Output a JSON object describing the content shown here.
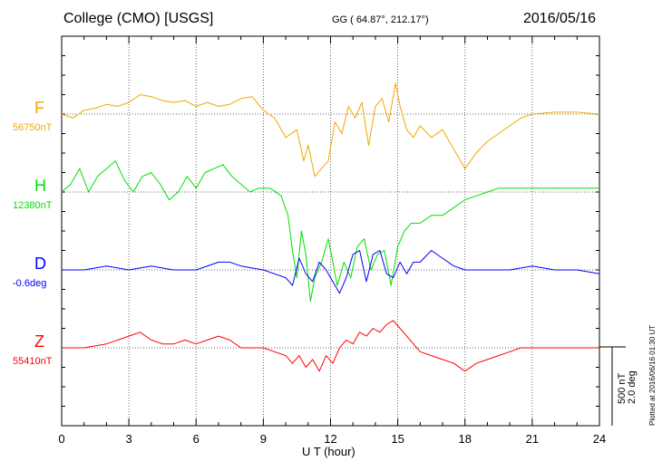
{
  "header": {
    "title": "College (CMO)  [USGS]",
    "coords": "GG ( 64.87°, 212.17°)",
    "date": "2016/05/16"
  },
  "footer": {
    "plotted": "Plotted at 2016/06/16 01:30 UT"
  },
  "scale_bar": {
    "line1": "500 nT",
    "line2": "2.0 deg"
  },
  "chart_data": {
    "type": "line",
    "xlabel": "U T (hour)",
    "xlim": [
      0,
      24
    ],
    "x_ticks": [
      0,
      3,
      6,
      9,
      12,
      15,
      18,
      21,
      24
    ],
    "grid": true,
    "series": [
      {
        "name": "F",
        "baseline_label": "56750nT",
        "color": "#f0a800",
        "baseline_norm": 0.2,
        "points": [
          [
            0,
            0
          ],
          [
            0.5,
            -0.01
          ],
          [
            1,
            0.01
          ],
          [
            1.5,
            0.015
          ],
          [
            2,
            0.025
          ],
          [
            2.5,
            0.02
          ],
          [
            3,
            0.03
          ],
          [
            3.5,
            0.05
          ],
          [
            4,
            0.045
          ],
          [
            4.5,
            0.035
          ],
          [
            5,
            0.03
          ],
          [
            5.5,
            0.035
          ],
          [
            6,
            0.02
          ],
          [
            6.5,
            0.03
          ],
          [
            7,
            0.02
          ],
          [
            7.5,
            0.025
          ],
          [
            8,
            0.04
          ],
          [
            8.5,
            0.045
          ],
          [
            9,
            0.01
          ],
          [
            9.5,
            -0.01
          ],
          [
            10,
            -0.06
          ],
          [
            10.5,
            -0.04
          ],
          [
            10.8,
            -0.12
          ],
          [
            11,
            -0.08
          ],
          [
            11.3,
            -0.16
          ],
          [
            11.6,
            -0.14
          ],
          [
            11.9,
            -0.12
          ],
          [
            12.2,
            -0.02
          ],
          [
            12.5,
            -0.05
          ],
          [
            12.8,
            0.02
          ],
          [
            13.1,
            -0.01
          ],
          [
            13.4,
            0.03
          ],
          [
            13.7,
            -0.08
          ],
          [
            14,
            0.02
          ],
          [
            14.3,
            0.04
          ],
          [
            14.6,
            -0.02
          ],
          [
            14.9,
            0.08
          ],
          [
            15.1,
            0.02
          ],
          [
            15.4,
            -0.04
          ],
          [
            15.7,
            -0.06
          ],
          [
            16,
            -0.03
          ],
          [
            16.5,
            -0.06
          ],
          [
            17,
            -0.04
          ],
          [
            17.5,
            -0.09
          ],
          [
            18,
            -0.14
          ],
          [
            18.5,
            -0.1
          ],
          [
            19,
            -0.07
          ],
          [
            19.5,
            -0.05
          ],
          [
            20,
            -0.03
          ],
          [
            20.5,
            -0.01
          ],
          [
            21,
            0.0
          ],
          [
            22,
            0.005
          ],
          [
            23,
            0.005
          ],
          [
            24,
            0.0
          ]
        ]
      },
      {
        "name": "H",
        "baseline_label": "12380nT",
        "color": "#00e000",
        "baseline_norm": 0.4,
        "points": [
          [
            0,
            0.0
          ],
          [
            0.4,
            0.02
          ],
          [
            0.8,
            0.06
          ],
          [
            1.2,
            0.0
          ],
          [
            1.6,
            0.04
          ],
          [
            2,
            0.06
          ],
          [
            2.4,
            0.08
          ],
          [
            2.8,
            0.03
          ],
          [
            3.2,
            0.0
          ],
          [
            3.6,
            0.04
          ],
          [
            4.0,
            0.05
          ],
          [
            4.4,
            0.02
          ],
          [
            4.8,
            -0.02
          ],
          [
            5.2,
            0.0
          ],
          [
            5.6,
            0.04
          ],
          [
            6.0,
            0.01
          ],
          [
            6.4,
            0.05
          ],
          [
            6.8,
            0.06
          ],
          [
            7.2,
            0.07
          ],
          [
            7.6,
            0.04
          ],
          [
            8.0,
            0.02
          ],
          [
            8.4,
            0.0
          ],
          [
            8.8,
            0.01
          ],
          [
            9.3,
            0.01
          ],
          [
            9.8,
            -0.01
          ],
          [
            10.1,
            -0.06
          ],
          [
            10.3,
            -0.15
          ],
          [
            10.5,
            -0.22
          ],
          [
            10.7,
            -0.1
          ],
          [
            10.9,
            -0.16
          ],
          [
            11.1,
            -0.28
          ],
          [
            11.3,
            -0.22
          ],
          [
            11.6,
            -0.18
          ],
          [
            11.9,
            -0.12
          ],
          [
            12.1,
            -0.18
          ],
          [
            12.3,
            -0.24
          ],
          [
            12.6,
            -0.18
          ],
          [
            12.9,
            -0.22
          ],
          [
            13.2,
            -0.14
          ],
          [
            13.5,
            -0.12
          ],
          [
            13.8,
            -0.2
          ],
          [
            14.1,
            -0.16
          ],
          [
            14.4,
            -0.15
          ],
          [
            14.7,
            -0.24
          ],
          [
            15.0,
            -0.14
          ],
          [
            15.3,
            -0.1
          ],
          [
            15.6,
            -0.08
          ],
          [
            16.0,
            -0.08
          ],
          [
            16.5,
            -0.06
          ],
          [
            17.0,
            -0.06
          ],
          [
            17.5,
            -0.04
          ],
          [
            18.0,
            -0.02
          ],
          [
            18.5,
            -0.01
          ],
          [
            19.0,
            0.0
          ],
          [
            19.5,
            0.01
          ],
          [
            20,
            0.01
          ],
          [
            21,
            0.01
          ],
          [
            22,
            0.01
          ],
          [
            23,
            0.01
          ],
          [
            24,
            0.01
          ]
        ]
      },
      {
        "name": "D",
        "baseline_label": "-0.6deg",
        "color": "#0000ff",
        "baseline_norm": 0.6,
        "points": [
          [
            0,
            0.0
          ],
          [
            1,
            0.0
          ],
          [
            2,
            0.01
          ],
          [
            3,
            0.0
          ],
          [
            4,
            0.01
          ],
          [
            5,
            0.0
          ],
          [
            6,
            0.0
          ],
          [
            7,
            0.02
          ],
          [
            7.5,
            0.02
          ],
          [
            8,
            0.01
          ],
          [
            9,
            0.0
          ],
          [
            9.5,
            -0.01
          ],
          [
            10,
            -0.02
          ],
          [
            10.3,
            -0.04
          ],
          [
            10.6,
            0.03
          ],
          [
            10.9,
            -0.01
          ],
          [
            11.2,
            -0.03
          ],
          [
            11.5,
            0.02
          ],
          [
            11.8,
            0.0
          ],
          [
            12.1,
            -0.03
          ],
          [
            12.4,
            -0.06
          ],
          [
            12.7,
            -0.02
          ],
          [
            13.0,
            0.04
          ],
          [
            13.3,
            0.05
          ],
          [
            13.6,
            -0.03
          ],
          [
            13.9,
            0.04
          ],
          [
            14.2,
            0.05
          ],
          [
            14.5,
            -0.01
          ],
          [
            14.8,
            -0.02
          ],
          [
            15.1,
            0.02
          ],
          [
            15.4,
            -0.01
          ],
          [
            15.7,
            0.02
          ],
          [
            16.0,
            0.02
          ],
          [
            16.5,
            0.05
          ],
          [
            17,
            0.03
          ],
          [
            17.5,
            0.01
          ],
          [
            18,
            0.0
          ],
          [
            19,
            0.0
          ],
          [
            20,
            0.0
          ],
          [
            21,
            0.01
          ],
          [
            22,
            0.0
          ],
          [
            23,
            0.0
          ],
          [
            24,
            -0.01
          ]
        ]
      },
      {
        "name": "Z",
        "baseline_label": "55410nT",
        "color": "#ff0000",
        "baseline_norm": 0.8,
        "points": [
          [
            0,
            0.0
          ],
          [
            1,
            0.0
          ],
          [
            2,
            0.01
          ],
          [
            2.5,
            0.02
          ],
          [
            3,
            0.03
          ],
          [
            3.5,
            0.04
          ],
          [
            4,
            0.02
          ],
          [
            4.5,
            0.01
          ],
          [
            5,
            0.01
          ],
          [
            5.5,
            0.02
          ],
          [
            6,
            0.01
          ],
          [
            6.5,
            0.02
          ],
          [
            7,
            0.03
          ],
          [
            7.5,
            0.02
          ],
          [
            8,
            0.0
          ],
          [
            9,
            0.0
          ],
          [
            9.5,
            -0.01
          ],
          [
            10,
            -0.02
          ],
          [
            10.3,
            -0.04
          ],
          [
            10.6,
            -0.02
          ],
          [
            10.9,
            -0.05
          ],
          [
            11.2,
            -0.03
          ],
          [
            11.5,
            -0.06
          ],
          [
            11.8,
            -0.02
          ],
          [
            12.1,
            -0.04
          ],
          [
            12.4,
            0.0
          ],
          [
            12.7,
            0.02
          ],
          [
            13.0,
            0.01
          ],
          [
            13.3,
            0.04
          ],
          [
            13.6,
            0.03
          ],
          [
            13.9,
            0.05
          ],
          [
            14.2,
            0.04
          ],
          [
            14.5,
            0.06
          ],
          [
            14.8,
            0.07
          ],
          [
            15.1,
            0.05
          ],
          [
            15.4,
            0.03
          ],
          [
            15.7,
            0.01
          ],
          [
            16.0,
            -0.01
          ],
          [
            16.5,
            -0.02
          ],
          [
            17,
            -0.03
          ],
          [
            17.5,
            -0.04
          ],
          [
            18,
            -0.06
          ],
          [
            18.5,
            -0.04
          ],
          [
            19,
            -0.03
          ],
          [
            19.5,
            -0.02
          ],
          [
            20,
            -0.01
          ],
          [
            20.5,
            0.0
          ],
          [
            21,
            0.0
          ],
          [
            22,
            0.0
          ],
          [
            23,
            0.0
          ],
          [
            24,
            0.0
          ]
        ]
      }
    ]
  }
}
